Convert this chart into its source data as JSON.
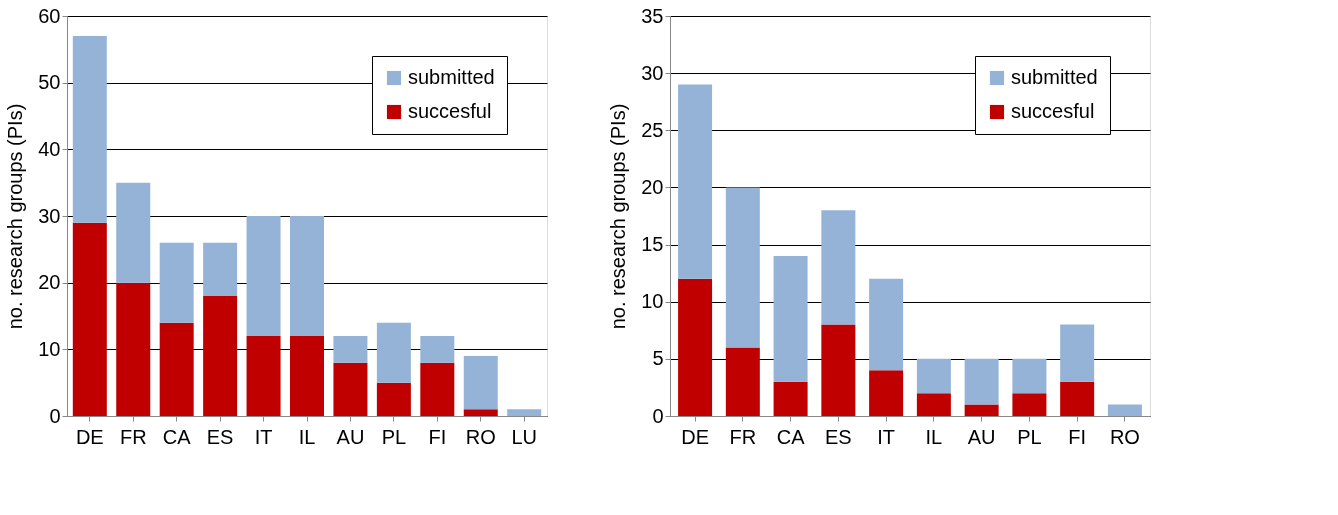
{
  "chart_data": [
    {
      "type": "bar",
      "stacked": true,
      "ylabel": "no. research groups (PIs)",
      "categories": [
        "DE",
        "FR",
        "CA",
        "ES",
        "IT",
        "IL",
        "AU",
        "PL",
        "FI",
        "RO",
        "LU"
      ],
      "series": [
        {
          "name": "succesful",
          "color": "#c00000",
          "values": [
            29,
            20,
            14,
            18,
            12,
            12,
            8,
            5,
            8,
            1,
            0
          ]
        },
        {
          "name": "submitted",
          "color": "#95b3d7",
          "values": [
            28,
            15,
            12,
            8,
            18,
            18,
            4,
            9,
            4,
            8,
            1
          ]
        }
      ],
      "ylim": [
        0,
        60
      ],
      "yticks": [
        0,
        10,
        20,
        30,
        40,
        50,
        60
      ],
      "grid": "y",
      "legend": "top right"
    },
    {
      "type": "bar",
      "stacked": true,
      "ylabel": "no. research groups (PIs)",
      "categories": [
        "DE",
        "FR",
        "CA",
        "ES",
        "IT",
        "IL",
        "AU",
        "PL",
        "FI",
        "RO"
      ],
      "series": [
        {
          "name": "succesful",
          "color": "#c00000",
          "values": [
            12,
            6,
            3,
            8,
            4,
            2,
            1,
            2,
            3,
            0
          ]
        },
        {
          "name": "submitted",
          "color": "#95b3d7",
          "values": [
            17,
            14,
            11,
            10,
            8,
            3,
            4,
            3,
            5,
            1
          ]
        }
      ],
      "ylim": [
        0,
        35
      ],
      "yticks": [
        0,
        5,
        10,
        15,
        20,
        25,
        30,
        35
      ],
      "grid": "y",
      "legend": "top right"
    }
  ]
}
